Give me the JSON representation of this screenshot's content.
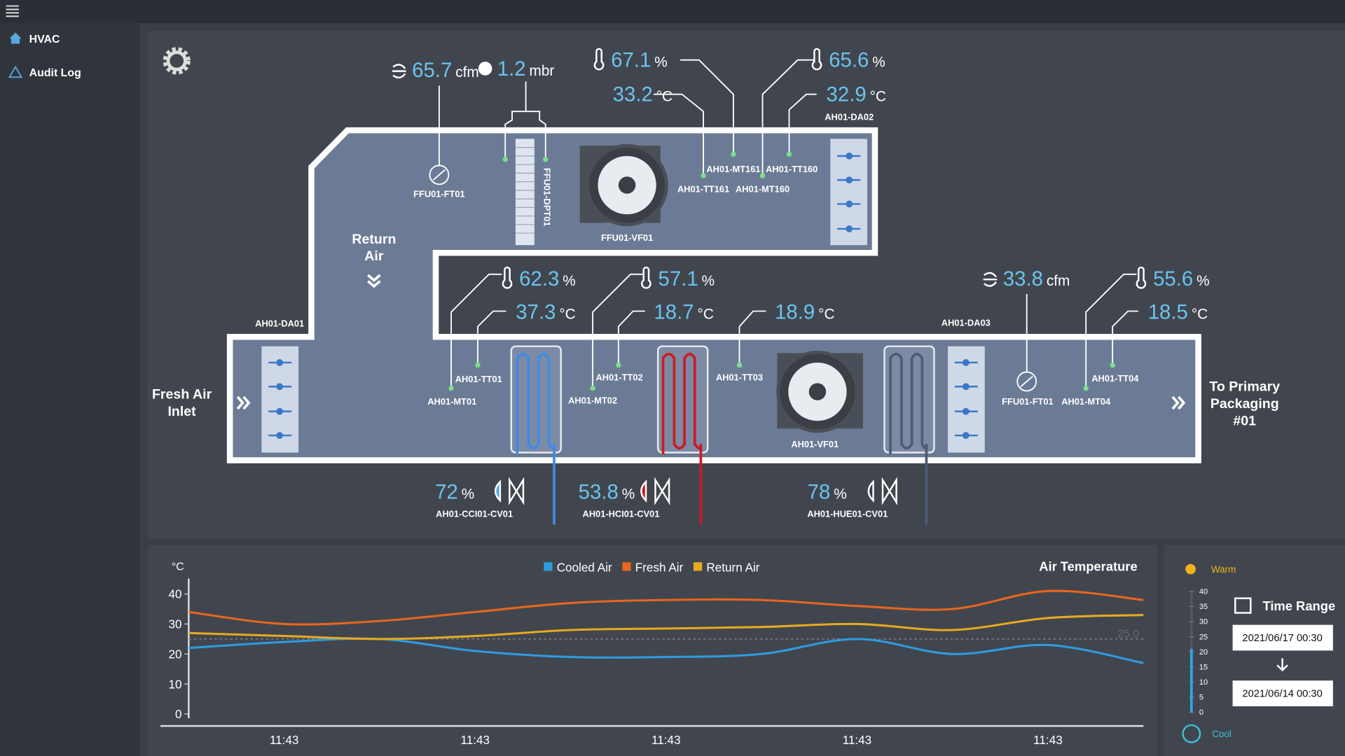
{
  "sidebar": {
    "items": [
      "HVAC",
      "Audit Log"
    ]
  },
  "diagram": {
    "zones": {
      "return_air": [
        "Return",
        "Air"
      ],
      "fresh_air": [
        "Fresh Air",
        "Inlet"
      ],
      "outlet": [
        "To Primary",
        "Packaging",
        "#01"
      ]
    },
    "readings": [
      {
        "value": 65.7,
        "unit": "cfm"
      },
      {
        "value": 1.2,
        "unit": "mbr"
      },
      {
        "value": 67.1,
        "unit": "%"
      },
      {
        "value": 33.2,
        "unit": "°C"
      },
      {
        "value": 65.6,
        "unit": "%"
      },
      {
        "value": 32.9,
        "unit": "°C"
      },
      {
        "value": 62.3,
        "unit": "%"
      },
      {
        "value": 37.3,
        "unit": "°C"
      },
      {
        "value": 57.1,
        "unit": "%"
      },
      {
        "value": 18.7,
        "unit": "°C"
      },
      {
        "value": 18.9,
        "unit": "°C"
      },
      {
        "value": 33.8,
        "unit": "cfm"
      },
      {
        "value": 55.6,
        "unit": "%"
      },
      {
        "value": 18.5,
        "unit": "°C"
      },
      {
        "value": 72,
        "unit": "%"
      },
      {
        "value": 53.8,
        "unit": "%"
      },
      {
        "value": 78,
        "unit": "%"
      }
    ],
    "tags": [
      "FFU01-FT01",
      "FFU01-DPT01",
      "FFU01-VF01",
      "AH01-MT161",
      "AH01-TT160",
      "AH01-TT161",
      "AH01-MT160",
      "AH01-DA02",
      "AH01-DA01",
      "AH01-DA03",
      "AH01-TT01",
      "AH01-MT01",
      "AH01-TT02",
      "AH01-MT02",
      "AH01-TT03",
      "AH01-VF01",
      "FFU01-FT01",
      "AH01-MT04",
      "AH01-TT04",
      "AH01-CCI01-CV01",
      "AH01-HCI01-CV01",
      "AH01-HUE01-CV01"
    ]
  },
  "chart": {
    "title": "Air Temperature",
    "y_unit": "°C",
    "ylim": [
      0,
      45
    ],
    "yticks": [
      0,
      10,
      20,
      30,
      40
    ],
    "xtick_labels": [
      "11:43",
      "11:43",
      "11:43",
      "11:43",
      "11:43"
    ],
    "threshold": {
      "value": 25,
      "label": "25.0"
    },
    "series": [
      {
        "name": "Cooled Air",
        "color": "#2f9be0",
        "values": [
          22,
          24,
          25,
          21,
          19,
          19,
          20,
          25,
          20,
          23,
          17
        ]
      },
      {
        "name": "Fresh Air",
        "color": "#e8661e",
        "values": [
          34,
          30,
          31,
          34,
          37,
          38,
          38,
          36,
          35,
          41,
          38
        ]
      },
      {
        "name": "Return Air",
        "color": "#e6a921",
        "values": [
          27,
          26,
          25,
          26,
          28,
          28.5,
          29,
          30,
          28,
          32,
          33
        ]
      }
    ]
  },
  "control": {
    "warm": "Warm",
    "cool": "Cool",
    "time_range": "Time Range",
    "start": "2021/06/17 00:30",
    "end": "2021/06/14 00:30",
    "gauge": {
      "ylim": [
        0,
        40
      ],
      "yticks": [
        0,
        5,
        10,
        15,
        20,
        25,
        30,
        35,
        40
      ],
      "level": 21
    }
  }
}
